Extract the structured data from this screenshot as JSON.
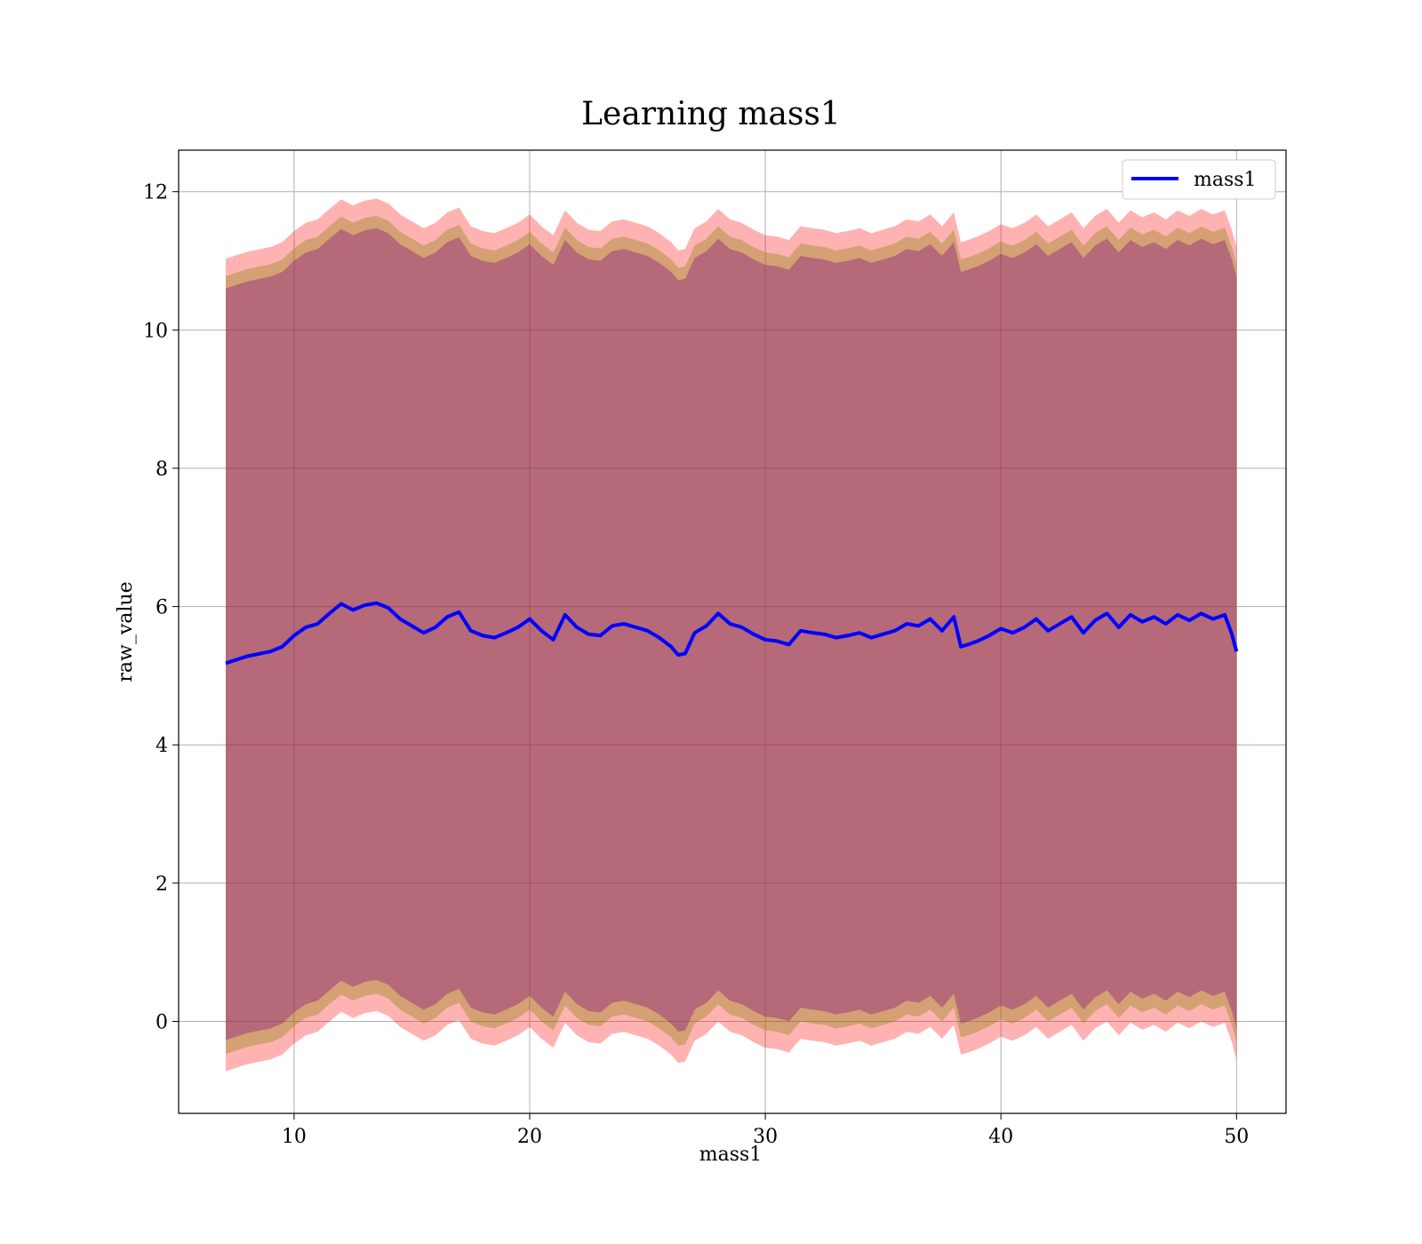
{
  "chart_data": {
    "type": "line",
    "title": "Learning mass1",
    "xlabel": "mass1",
    "ylabel": "raw_value",
    "xlim": [
      5.1,
      52.1
    ],
    "ylim": [
      -1.33,
      12.6
    ],
    "xticks": [
      10,
      20,
      30,
      40,
      50
    ],
    "yticks": [
      0,
      2,
      4,
      6,
      8,
      10,
      12
    ],
    "grid": true,
    "legend_position": "top-right",
    "series": [
      {
        "name": "mass1",
        "color": "#0000ff",
        "x": [
          7.1,
          8.0,
          9.0,
          9.5,
          10.0,
          10.5,
          11.0,
          11.5,
          12.0,
          12.5,
          13.0,
          13.5,
          14.0,
          14.5,
          15.0,
          15.5,
          16.0,
          16.5,
          17.0,
          17.5,
          18.0,
          18.5,
          19.0,
          19.5,
          20.0,
          20.5,
          21.0,
          21.5,
          22.0,
          22.5,
          23.0,
          23.5,
          24.0,
          24.5,
          25.0,
          25.5,
          26.0,
          26.3,
          26.6,
          27.0,
          27.5,
          28.0,
          28.5,
          29.0,
          29.5,
          30.0,
          30.5,
          31.0,
          31.5,
          32.0,
          32.5,
          33.0,
          33.5,
          34.0,
          34.5,
          35.0,
          35.5,
          36.0,
          36.5,
          37.0,
          37.5,
          38.0,
          38.3,
          38.6,
          39.0,
          39.5,
          40.0,
          40.5,
          41.0,
          41.5,
          42.0,
          42.5,
          43.0,
          43.5,
          44.0,
          44.5,
          45.0,
          45.5,
          46.0,
          46.5,
          47.0,
          47.5,
          48.0,
          48.5,
          49.0,
          49.5,
          49.8,
          50.0
        ],
        "values": [
          5.18,
          5.28,
          5.35,
          5.42,
          5.58,
          5.7,
          5.75,
          5.9,
          6.04,
          5.95,
          6.02,
          6.05,
          5.98,
          5.82,
          5.72,
          5.62,
          5.7,
          5.85,
          5.92,
          5.65,
          5.58,
          5.55,
          5.62,
          5.7,
          5.82,
          5.65,
          5.52,
          5.88,
          5.7,
          5.6,
          5.58,
          5.72,
          5.75,
          5.7,
          5.65,
          5.55,
          5.42,
          5.3,
          5.32,
          5.62,
          5.72,
          5.9,
          5.75,
          5.7,
          5.6,
          5.52,
          5.5,
          5.45,
          5.65,
          5.62,
          5.6,
          5.55,
          5.58,
          5.62,
          5.55,
          5.6,
          5.65,
          5.75,
          5.72,
          5.82,
          5.65,
          5.85,
          5.42,
          5.45,
          5.5,
          5.58,
          5.68,
          5.62,
          5.7,
          5.82,
          5.65,
          5.75,
          5.85,
          5.62,
          5.8,
          5.9,
          5.7,
          5.88,
          5.78,
          5.85,
          5.75,
          5.88,
          5.8,
          5.9,
          5.82,
          5.88,
          5.6,
          5.35
        ]
      }
    ],
    "bands": [
      {
        "color": "#ff0000",
        "opacity": 0.3,
        "lower_offset": -5.9,
        "upper_offset": 5.85
      },
      {
        "color": "#808000",
        "opacity": 0.35,
        "lower_offset": -5.65,
        "upper_offset": 5.6
      },
      {
        "color": "#800080",
        "opacity": 0.35,
        "lower_offset": -5.45,
        "upper_offset": 5.42
      }
    ]
  }
}
